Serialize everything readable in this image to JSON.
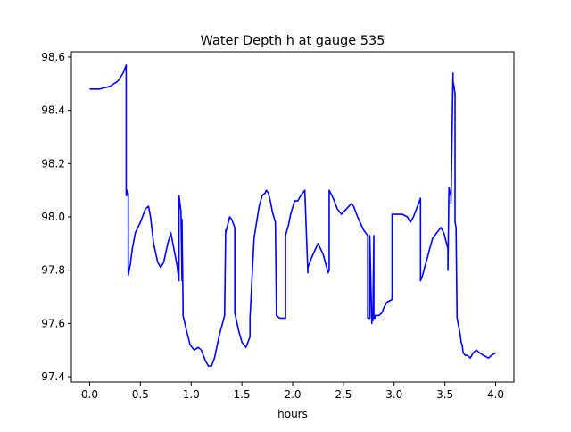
{
  "chart_data": {
    "type": "line",
    "title": "Water Depth h at gauge 535",
    "xlabel": "hours",
    "ylabel": "",
    "xlim": [
      -0.18,
      4.18
    ],
    "ylim": [
      97.38,
      98.62
    ],
    "x_ticks": [
      0.0,
      0.5,
      1.0,
      1.5,
      2.0,
      2.5,
      3.0,
      3.5,
      4.0
    ],
    "x_tick_labels": [
      "0.0",
      "0.5",
      "1.0",
      "1.5",
      "2.0",
      "2.5",
      "3.0",
      "3.5",
      "4.0"
    ],
    "y_ticks": [
      97.4,
      97.6,
      97.8,
      98.0,
      98.2,
      98.4,
      98.6
    ],
    "y_tick_labels": [
      "97.4",
      "97.6",
      "97.8",
      "98.0",
      "98.2",
      "98.4",
      "98.6"
    ],
    "grid": false,
    "series": [
      {
        "color": "#0000ff",
        "x": [
          0.0,
          0.1,
          0.2,
          0.28,
          0.33,
          0.36,
          0.36,
          0.37,
          0.375,
          0.38,
          0.38,
          0.4,
          0.42,
          0.45,
          0.5,
          0.55,
          0.58,
          0.6,
          0.63,
          0.67,
          0.7,
          0.73,
          0.77,
          0.8,
          0.83,
          0.86,
          0.88,
          0.88,
          0.9,
          0.91,
          0.91,
          0.92,
          0.92,
          0.95,
          0.99,
          1.03,
          1.07,
          1.1,
          1.14,
          1.17,
          1.2,
          1.23,
          1.28,
          1.33,
          1.34,
          1.34,
          1.38,
          1.4,
          1.43,
          1.43,
          1.47,
          1.5,
          1.54,
          1.58,
          1.58,
          1.62,
          1.67,
          1.7,
          1.73,
          1.74,
          1.76,
          1.78,
          1.8,
          1.83,
          1.84,
          1.84,
          1.87,
          1.93,
          1.93,
          1.96,
          1.98,
          2.02,
          2.05,
          2.08,
          2.12,
          2.15,
          2.15,
          2.19,
          2.25,
          2.3,
          2.35,
          2.36,
          2.36,
          2.4,
          2.44,
          2.48,
          2.53,
          2.58,
          2.6,
          2.64,
          2.7,
          2.74,
          2.74,
          2.76,
          2.76,
          2.78,
          2.78,
          2.79,
          2.8,
          2.8,
          2.81,
          2.81,
          2.85,
          2.88,
          2.9,
          2.93,
          2.98,
          2.98,
          3.03,
          3.08,
          3.13,
          3.16,
          3.19,
          3.23,
          3.26,
          3.26,
          3.28,
          3.3,
          3.33,
          3.35,
          3.38,
          3.42,
          3.46,
          3.49,
          3.53,
          3.53,
          3.54,
          3.55,
          3.56,
          3.56,
          3.58,
          3.58,
          3.59,
          3.6,
          3.6,
          3.61,
          3.62,
          3.64,
          3.65,
          3.66,
          3.67,
          3.68,
          3.7,
          3.72,
          3.75,
          3.78,
          3.81,
          3.84,
          3.88,
          3.93,
          3.96,
          4.0
        ],
        "y": [
          98.48,
          98.48,
          98.49,
          98.51,
          98.54,
          98.57,
          98.08,
          98.1,
          98.08,
          98.09,
          97.78,
          97.82,
          97.88,
          97.94,
          97.98,
          98.03,
          98.04,
          98.0,
          97.9,
          97.83,
          97.81,
          97.83,
          97.9,
          97.94,
          97.88,
          97.82,
          97.76,
          98.08,
          98.02,
          97.76,
          97.99,
          97.67,
          97.63,
          97.58,
          97.52,
          97.5,
          97.51,
          97.5,
          97.46,
          97.44,
          97.44,
          97.47,
          97.56,
          97.63,
          97.95,
          97.94,
          98.0,
          97.99,
          97.96,
          97.64,
          97.57,
          97.53,
          97.51,
          97.55,
          97.62,
          97.92,
          98.04,
          98.08,
          98.09,
          98.1,
          98.09,
          98.06,
          98.02,
          97.98,
          97.66,
          97.63,
          97.62,
          97.62,
          97.93,
          97.97,
          98.01,
          98.06,
          98.06,
          98.08,
          98.1,
          97.79,
          97.81,
          97.85,
          97.9,
          97.86,
          97.79,
          97.8,
          98.1,
          98.07,
          98.03,
          98.01,
          98.03,
          98.05,
          98.04,
          98.0,
          97.95,
          97.93,
          97.62,
          97.62,
          97.93,
          97.6,
          97.62,
          97.61,
          97.93,
          97.62,
          97.62,
          97.63,
          97.63,
          97.64,
          97.66,
          97.68,
          97.69,
          98.01,
          98.01,
          98.01,
          98.0,
          97.98,
          98.0,
          98.04,
          98.07,
          97.76,
          97.78,
          97.81,
          97.85,
          97.88,
          97.92,
          97.94,
          97.96,
          97.94,
          97.88,
          97.8,
          98.11,
          98.09,
          98.08,
          98.05,
          98.54,
          98.51,
          98.49,
          98.46,
          97.98,
          97.96,
          97.62,
          97.58,
          97.56,
          97.53,
          97.52,
          97.49,
          97.48,
          97.48,
          97.47,
          97.49,
          97.5,
          97.49,
          97.48,
          97.47,
          97.48,
          97.49
        ]
      }
    ]
  }
}
